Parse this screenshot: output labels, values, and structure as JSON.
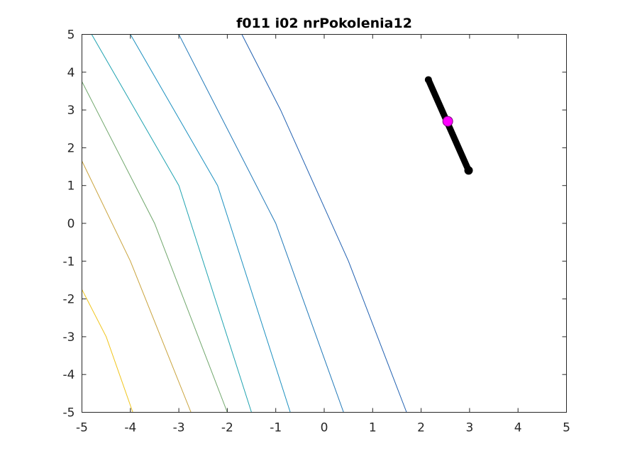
{
  "chart_data": {
    "type": "contour",
    "title": "f011 i02 nrPokolenia12",
    "xlabel": "",
    "ylabel": "",
    "xlim": [
      -5,
      5
    ],
    "ylim": [
      -5,
      5
    ],
    "xticks": [
      -5,
      -4,
      -3,
      -2,
      -1,
      0,
      1,
      2,
      3,
      4,
      5
    ],
    "yticks": [
      -5,
      -4,
      -3,
      -2,
      -1,
      0,
      1,
      2,
      3,
      4,
      5
    ],
    "xtick_labels": [
      "-5",
      "-4",
      "-3",
      "-2",
      "-1",
      "0",
      "1",
      "2",
      "3",
      "4",
      "5"
    ],
    "ytick_labels": [
      "-5",
      "-4",
      "-3",
      "-2",
      "-1",
      "0",
      "1",
      "2",
      "3",
      "4",
      "5"
    ],
    "grid": false,
    "contour_lines": [
      {
        "color": "#1f5fb0",
        "points": [
          [
            -1.7,
            5.0
          ],
          [
            -0.9,
            3.0
          ],
          [
            -0.2,
            1.0
          ],
          [
            0.5,
            -1.0
          ],
          [
            1.7,
            -5.0
          ]
        ]
      },
      {
        "color": "#1f78b8",
        "points": [
          [
            -3.0,
            5.0
          ],
          [
            -1.0,
            0.0
          ],
          [
            0.4,
            -5.0
          ]
        ]
      },
      {
        "color": "#1a8fbf",
        "points": [
          [
            -4.0,
            5.0
          ],
          [
            -2.2,
            1.0
          ],
          [
            -0.7,
            -5.0
          ]
        ]
      },
      {
        "color": "#1ea2b0",
        "points": [
          [
            -4.8,
            5.0
          ],
          [
            -3.0,
            1.0
          ],
          [
            -1.5,
            -5.0
          ]
        ]
      },
      {
        "color": "#6fa66b",
        "points": [
          [
            -5.0,
            3.75
          ],
          [
            -3.5,
            0.0
          ],
          [
            -2.0,
            -5.0
          ]
        ]
      },
      {
        "color": "#c9a33c",
        "points": [
          [
            -5.0,
            1.65
          ],
          [
            -4.0,
            -1.0
          ],
          [
            -2.75,
            -5.0
          ]
        ]
      },
      {
        "color": "#f0c419",
        "points": [
          [
            -5.0,
            -1.75
          ],
          [
            -4.5,
            -3.0
          ],
          [
            -3.95,
            -5.0
          ]
        ]
      }
    ],
    "population": {
      "color": "#000000",
      "from": [
        2.15,
        3.8
      ],
      "to": [
        2.98,
        1.4
      ]
    },
    "best_point": {
      "x": 2.55,
      "y": 2.7,
      "color": "#ff00ff"
    }
  }
}
